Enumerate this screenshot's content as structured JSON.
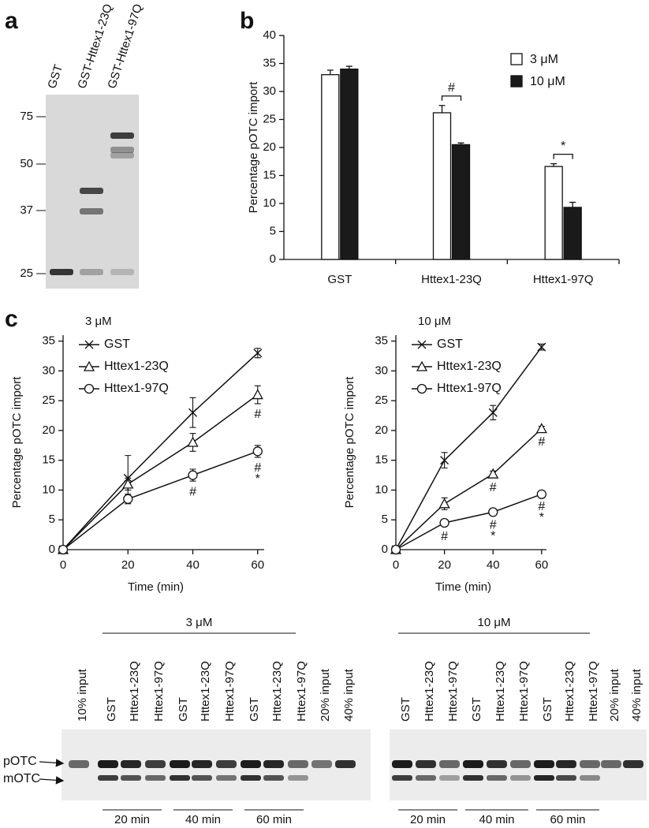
{
  "panels": [
    "a",
    "b",
    "c"
  ],
  "gel_a": {
    "lanes": [
      "GST",
      "GST-Httex1-23Q",
      "GST-Httex1-97Q"
    ],
    "markers": [
      75,
      50,
      37,
      25
    ]
  },
  "chart_data": [
    {
      "type": "bar",
      "ylabel": "Percentage pOTC import",
      "categories": [
        "GST",
        "Httex1-23Q",
        "Httex1-97Q"
      ],
      "series": [
        {
          "name": "3 μM",
          "color": "#ffffff",
          "values": [
            33,
            26.2,
            16.6
          ],
          "errors": [
            0.8,
            1.3,
            0.5
          ]
        },
        {
          "name": "10 μM",
          "color": "#1a1a1a",
          "values": [
            34,
            20.5,
            9.3
          ],
          "errors": [
            0.5,
            0.3,
            0.9
          ]
        }
      ],
      "ylim": [
        0,
        40
      ],
      "yticks": [
        0,
        5,
        10,
        15,
        20,
        25,
        30,
        35,
        40
      ],
      "annotations": [
        {
          "category": "Httex1-23Q",
          "text": "#"
        },
        {
          "category": "Httex1-97Q",
          "text": "*"
        }
      ]
    },
    {
      "type": "line",
      "title": "3 μM",
      "xlabel": "Time (min)",
      "ylabel": "Percentage pOTC import",
      "x": [
        0,
        20,
        40,
        60
      ],
      "series": [
        {
          "name": "GST",
          "marker": "x",
          "color": "#111111",
          "values": [
            0,
            12,
            23,
            33
          ],
          "errors": [
            0,
            3.8,
            2.5,
            0.8
          ]
        },
        {
          "name": "Httex1-23Q",
          "marker": "triangle",
          "color": "#111111",
          "values": [
            0,
            11,
            18,
            26
          ],
          "errors": [
            0,
            1,
            1.5,
            1.5
          ]
        },
        {
          "name": "Httex1-97Q",
          "marker": "circle",
          "color": "#111111",
          "values": [
            0,
            8.5,
            12.5,
            16.5
          ],
          "errors": [
            0,
            0.8,
            1,
            1
          ]
        }
      ],
      "xlim": [
        0,
        62
      ],
      "xticks": [
        0,
        20,
        40,
        60
      ],
      "ylim": [
        0,
        36
      ],
      "yticks": [
        0,
        5,
        10,
        15,
        20,
        25,
        30,
        35
      ],
      "annotations": [
        {
          "series": "Httex1-23Q",
          "x": 60,
          "texts": [
            "#"
          ]
        },
        {
          "series": "Httex1-97Q",
          "x": 40,
          "texts": [
            "#"
          ]
        },
        {
          "series": "Httex1-97Q",
          "x": 60,
          "texts": [
            "#",
            "*"
          ]
        }
      ]
    },
    {
      "type": "line",
      "title": "10 μM",
      "xlabel": "Time (min)",
      "ylabel": "Percentage pOTC import",
      "x": [
        0,
        20,
        40,
        60
      ],
      "series": [
        {
          "name": "GST",
          "marker": "x",
          "color": "#111111",
          "values": [
            0,
            15,
            23,
            34
          ],
          "errors": [
            0,
            1.3,
            1.2,
            0.5
          ]
        },
        {
          "name": "Httex1-23Q",
          "marker": "triangle",
          "color": "#111111",
          "values": [
            0,
            7.7,
            12.7,
            20.3
          ],
          "errors": [
            0,
            1,
            0.5,
            0.4
          ]
        },
        {
          "name": "Httex1-97Q",
          "marker": "circle",
          "color": "#111111",
          "values": [
            0,
            4.5,
            6.3,
            9.3
          ],
          "errors": [
            0,
            0.5,
            0.4,
            0.3
          ]
        }
      ],
      "xlim": [
        0,
        62
      ],
      "xticks": [
        0,
        20,
        40,
        60
      ],
      "ylim": [
        0,
        36
      ],
      "yticks": [
        0,
        5,
        10,
        15,
        20,
        25,
        30,
        35
      ],
      "annotations": [
        {
          "series": "Httex1-97Q",
          "x": 20,
          "texts": [
            "#"
          ]
        },
        {
          "series": "Httex1-23Q",
          "x": 40,
          "texts": [
            "#"
          ]
        },
        {
          "series": "Httex1-97Q",
          "x": 40,
          "texts": [
            "#",
            "*"
          ]
        },
        {
          "series": "Httex1-23Q",
          "x": 60,
          "texts": [
            "#"
          ]
        },
        {
          "series": "Httex1-97Q",
          "x": 60,
          "texts": [
            "#",
            "*"
          ]
        }
      ]
    }
  ],
  "gel_c": {
    "bands": [
      "pOTC",
      "mOTC"
    ],
    "left": {
      "label": "3 μM",
      "lanes": [
        "10% input",
        "GST",
        "Httex1-23Q",
        "Httex1-97Q",
        "GST",
        "Httex1-23Q",
        "Httex1-97Q",
        "GST",
        "Httex1-23Q",
        "Httex1-97Q",
        "20% input",
        "40% input"
      ],
      "times": [
        "20 min",
        "40 min",
        "60 min"
      ]
    },
    "right": {
      "label": "10 μM",
      "lanes": [
        "GST",
        "Httex1-23Q",
        "Httex1-97Q",
        "GST",
        "Httex1-23Q",
        "Httex1-97Q",
        "GST",
        "Httex1-23Q",
        "Httex1-97Q",
        "20% input",
        "40% input"
      ],
      "times": [
        "20 min",
        "40 min",
        "60 min"
      ]
    }
  }
}
